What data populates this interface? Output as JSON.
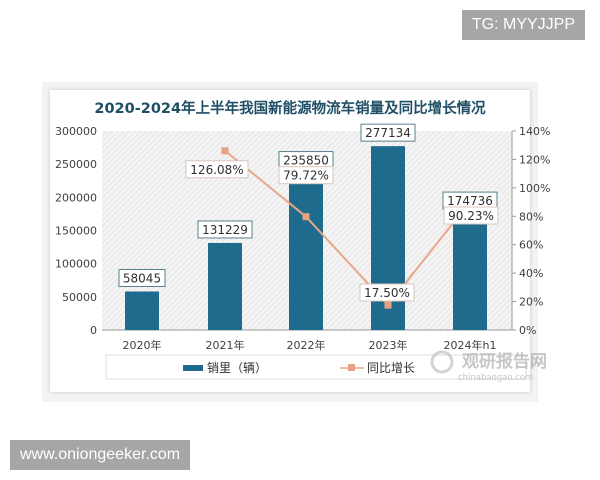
{
  "watermarks": {
    "top_right": "TG: MYYJJPP",
    "bottom_left": "www.oniongeeker.com",
    "chart_logo_cn": "观研报告网",
    "chart_logo_en": "chinabaogao.com"
  },
  "colors": {
    "bar": "#1f6b8e",
    "line": "#e8a68b",
    "marker": "#e6a283",
    "title": "#1f4f66",
    "axis_text": "#404040"
  },
  "chart_data": {
    "type": "bar",
    "title": "2020-2024年上半年我国新能源物流车销量及同比增长情况",
    "categories": [
      "2020年",
      "2021年",
      "2022年",
      "2023年",
      "2024年h1"
    ],
    "series": [
      {
        "name": "销里（辆）",
        "type": "bar",
        "axis": "left",
        "values": [
          58045,
          131229,
          235850,
          277134,
          174736
        ],
        "labels": [
          "58045",
          "131229",
          "235850",
          "277134",
          "174736"
        ]
      },
      {
        "name": "同比增长",
        "type": "line",
        "axis": "right",
        "values": [
          null,
          126.08,
          79.72,
          17.5,
          90.23
        ],
        "labels": [
          "",
          "126.08%",
          "79.72%",
          "17.50%",
          "90.23%"
        ]
      }
    ],
    "left_axis": {
      "ylim": [
        0,
        300000
      ],
      "ticks": [
        "0",
        "50000",
        "100000",
        "150000",
        "200000",
        "250000",
        "300000"
      ]
    },
    "right_axis": {
      "ylim": [
        0,
        140
      ],
      "ticks": [
        "0%",
        "20%",
        "40%",
        "60%",
        "80%",
        "100%",
        "120%",
        "140%"
      ]
    },
    "xlabel": "",
    "ylabel": "",
    "grid": false,
    "legend": {
      "position": "bottom",
      "entries": [
        "销里（辆）",
        "同比增长"
      ]
    }
  }
}
